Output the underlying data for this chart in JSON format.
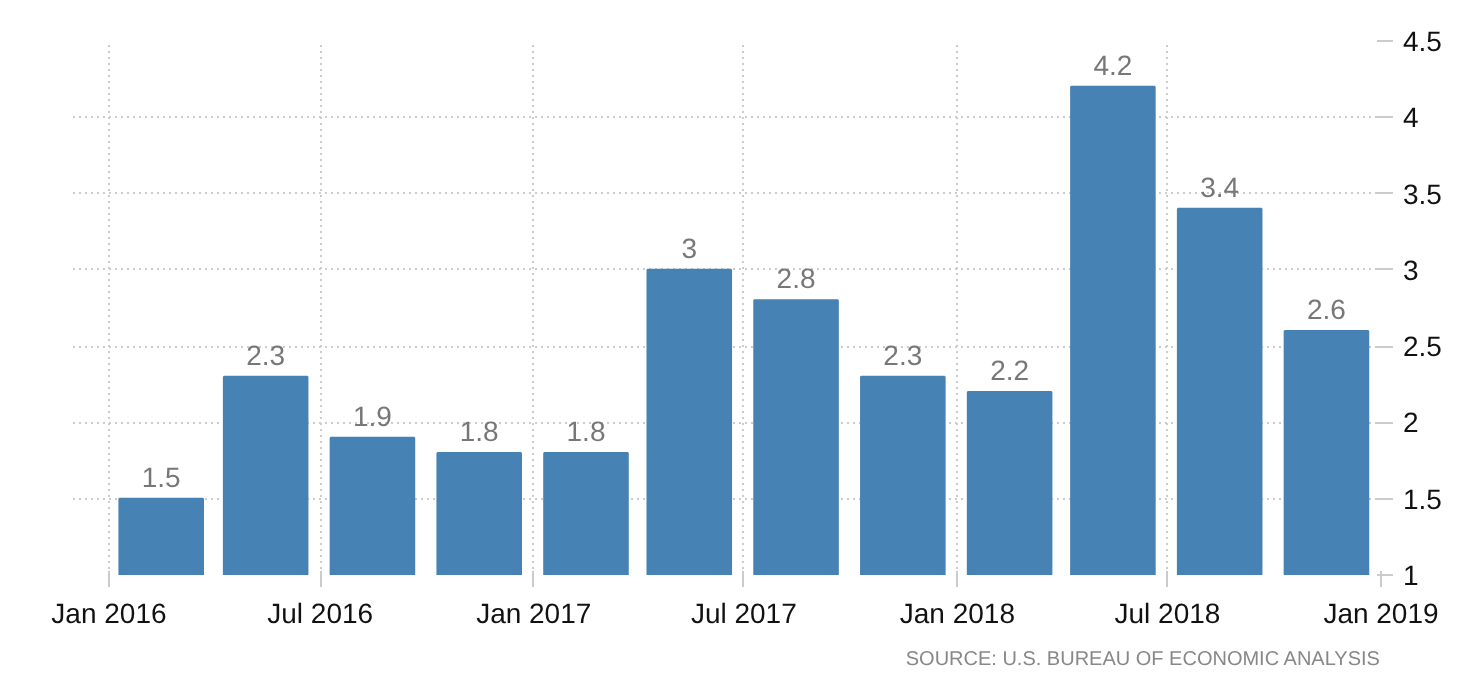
{
  "chart_data": {
    "type": "bar",
    "x": [
      "2016-02-15",
      "2016-05-15",
      "2016-08-15",
      "2016-11-15",
      "2017-02-15",
      "2017-05-15",
      "2017-08-15",
      "2017-11-15",
      "2018-02-15",
      "2018-05-15",
      "2018-08-15",
      "2018-11-15"
    ],
    "values": [
      1.5,
      2.3,
      1.9,
      1.8,
      1.8,
      3,
      2.8,
      2.3,
      2.2,
      4.2,
      3.4,
      2.6
    ],
    "color": "#4682b4",
    "xlim": [
      "2015-12-01",
      "2019-01-01"
    ],
    "xticks": [
      {
        "value": "2016-01-01",
        "label": "Jan 2016"
      },
      {
        "value": "2016-07-01",
        "label": "Jul 2016"
      },
      {
        "value": "2017-01-01",
        "label": "Jan 2017"
      },
      {
        "value": "2017-07-01",
        "label": "Jul 2017"
      },
      {
        "value": "2018-01-01",
        "label": "Jan 2018"
      },
      {
        "value": "2018-07-01",
        "label": "Jul 2018"
      },
      {
        "value": "2019-01-01",
        "label": "Jan 2019"
      }
    ],
    "ylim": [
      1,
      4.5
    ],
    "yticks": [
      1,
      1.5,
      2,
      2.5,
      3,
      3.5,
      4,
      4.5
    ],
    "grid": true,
    "data_labels": true,
    "annotations": [
      "SOURCE: U.S. BUREAU OF ECONOMIC ANALYSIS"
    ]
  }
}
